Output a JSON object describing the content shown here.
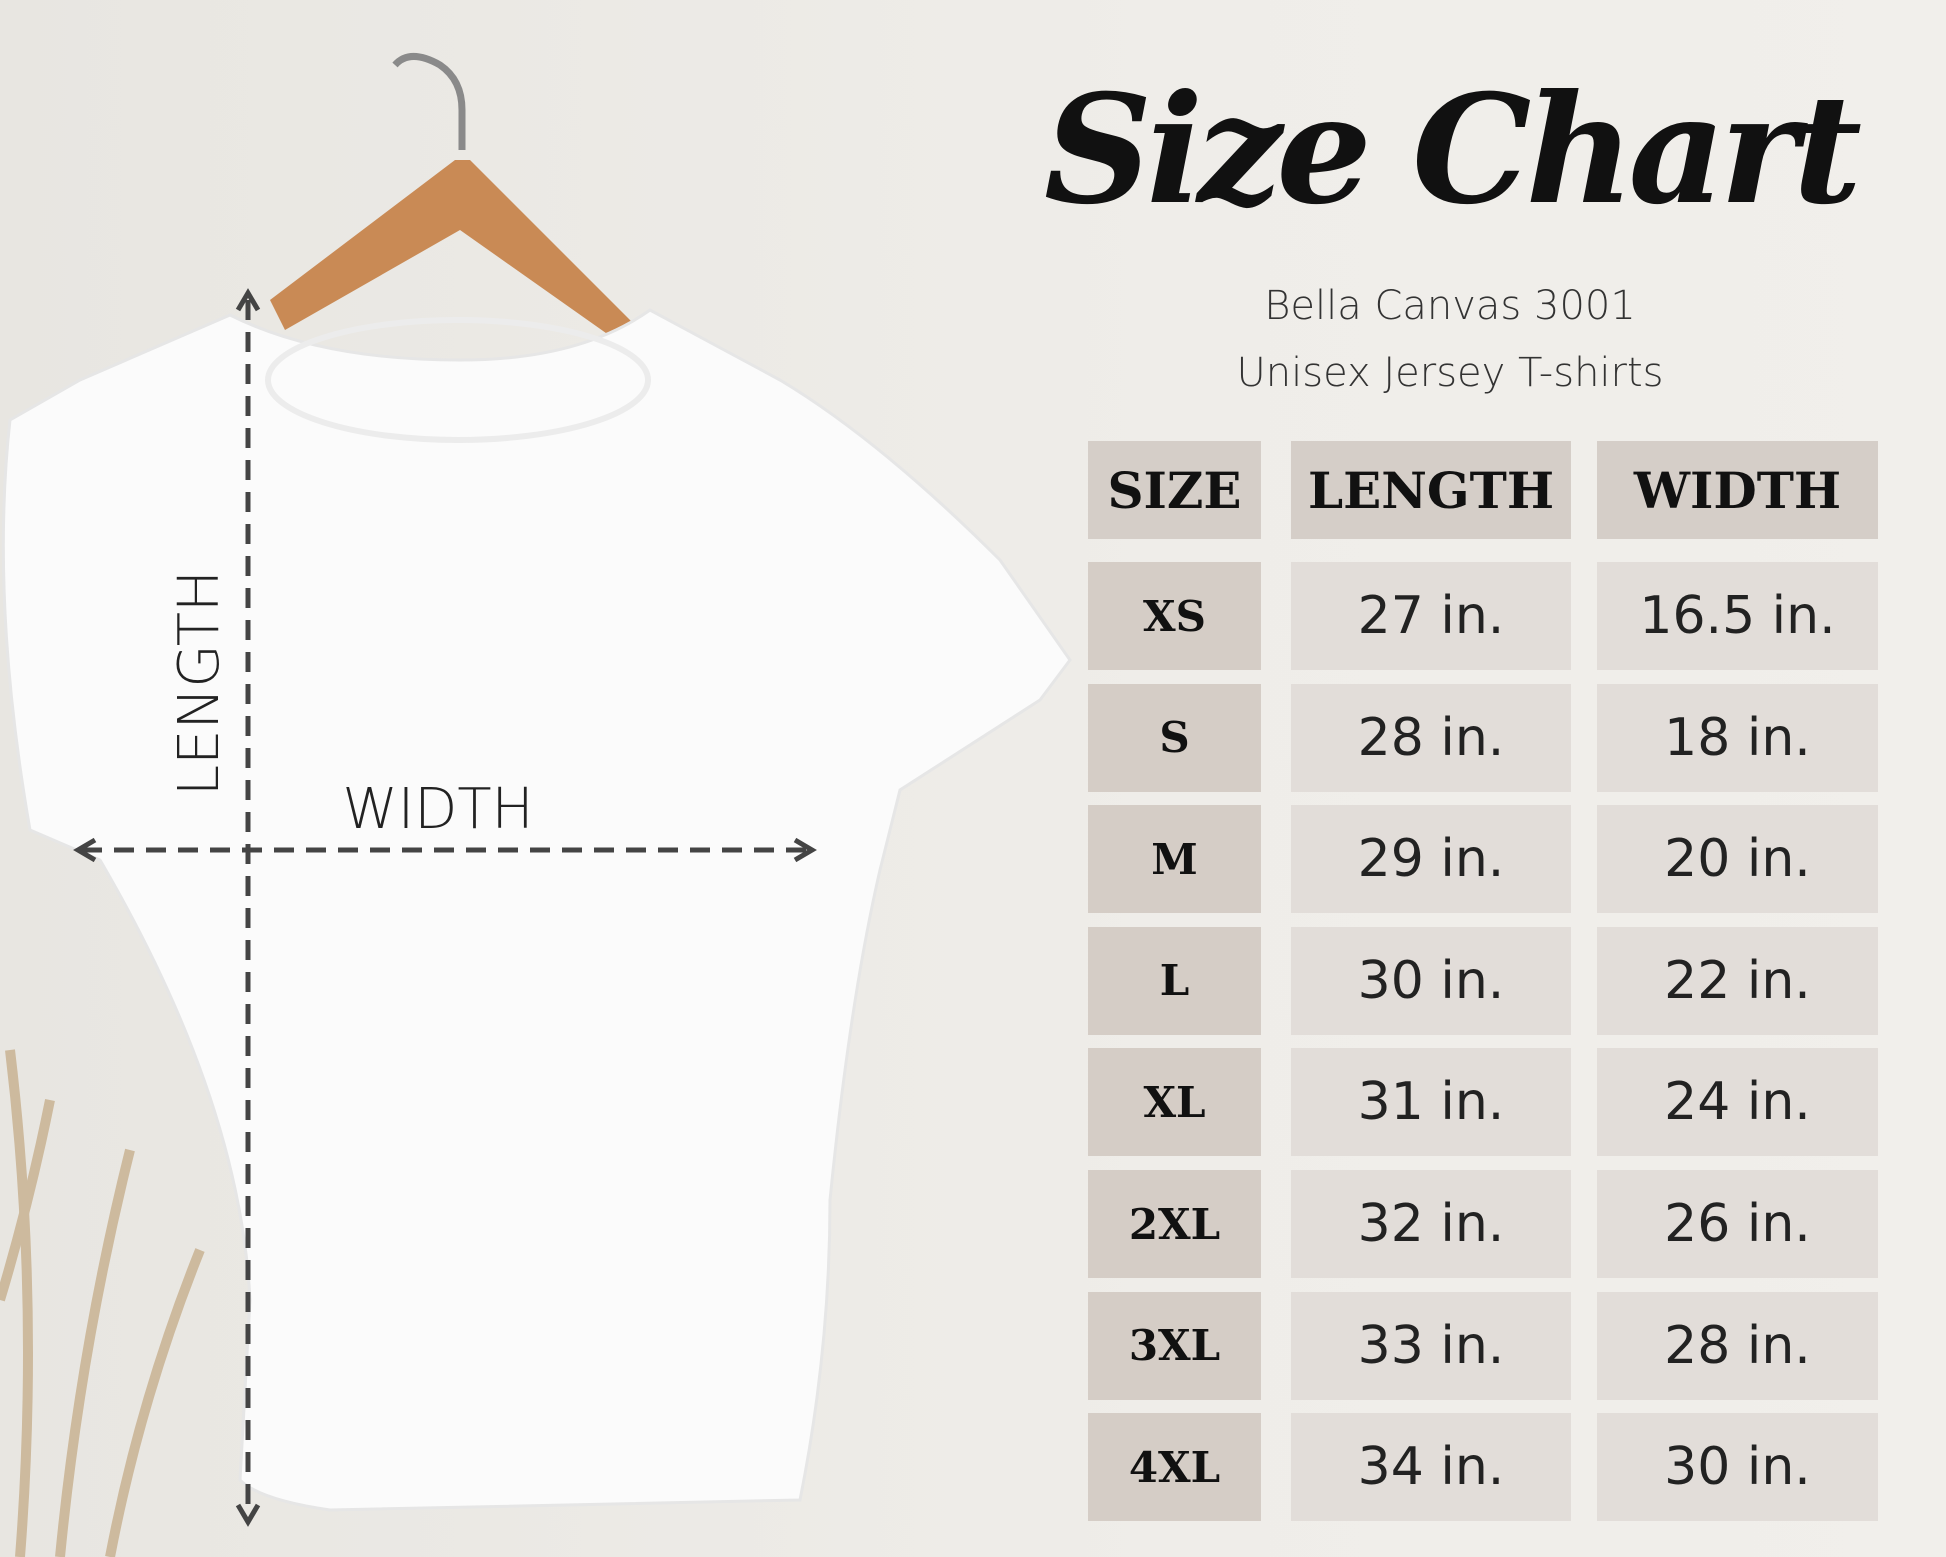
{
  "title": "Size Chart",
  "subtitle_lines": [
    "Bella Canvas 3001",
    "Unisex Jersey T-shirts"
  ],
  "diagram_labels": {
    "length": "LENGTH",
    "width": "WIDTH"
  },
  "colors": {
    "background": "#eeece8",
    "header_cell": "#d5cec8",
    "value_cell": "#e2ddd9"
  },
  "table": {
    "headers": [
      "SIZE",
      "LENGTH",
      "WIDTH"
    ],
    "rows": [
      [
        "XS",
        "27 in.",
        "16.5 in."
      ],
      [
        "S",
        "28 in.",
        "18 in."
      ],
      [
        "M",
        "29 in.",
        "20 in."
      ],
      [
        "L",
        "30 in.",
        "22 in."
      ],
      [
        "XL",
        "31 in.",
        "24 in."
      ],
      [
        "2XL",
        "32 in.",
        "26 in."
      ],
      [
        "3XL",
        "33 in.",
        "28 in."
      ],
      [
        "4XL",
        "34 in.",
        "30 in."
      ]
    ]
  }
}
